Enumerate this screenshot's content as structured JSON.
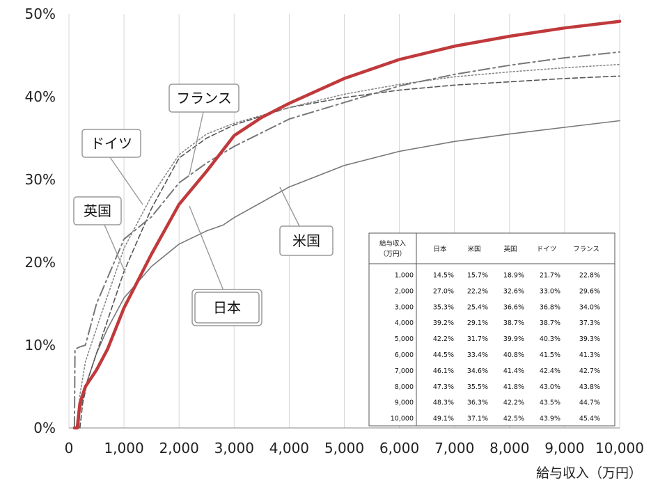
{
  "chart_data": {
    "type": "line",
    "xlabel": "給与収入（万円）",
    "ylabel": "",
    "xlim": [
      0,
      10000
    ],
    "ylim": [
      0,
      50
    ],
    "x_ticks": [
      "0",
      "1,000",
      "2,000",
      "3,000",
      "4,000",
      "5,000",
      "6,000",
      "7,000",
      "8,000",
      "9,000",
      "10,000"
    ],
    "y_ticks": [
      "0%",
      "10%",
      "20%",
      "30%",
      "40%",
      "50%"
    ],
    "grid": "vertical",
    "series": [
      {
        "name": "日本",
        "color": "#c0393b",
        "points": [
          [
            100,
            0
          ],
          [
            150,
            0
          ],
          [
            200,
            3
          ],
          [
            300,
            5
          ],
          [
            500,
            7
          ],
          [
            700,
            9.5
          ],
          [
            1000,
            14.5
          ],
          [
            1500,
            21
          ],
          [
            2000,
            27
          ],
          [
            2500,
            31
          ],
          [
            3000,
            35.3
          ],
          [
            3500,
            37.5
          ],
          [
            4000,
            39.2
          ],
          [
            5000,
            42.2
          ],
          [
            6000,
            44.5
          ],
          [
            7000,
            46.1
          ],
          [
            8000,
            47.3
          ],
          [
            9000,
            48.3
          ],
          [
            10000,
            49.1
          ]
        ]
      },
      {
        "name": "米国",
        "color": "#777777",
        "points": [
          [
            180,
            0
          ],
          [
            200,
            2
          ],
          [
            300,
            5
          ],
          [
            500,
            9
          ],
          [
            700,
            12
          ],
          [
            1000,
            15.7
          ],
          [
            1500,
            19.5
          ],
          [
            2000,
            22.2
          ],
          [
            2500,
            23.8
          ],
          [
            2800,
            24.5
          ],
          [
            3000,
            25.4
          ],
          [
            4000,
            29.1
          ],
          [
            5000,
            31.7
          ],
          [
            6000,
            33.4
          ],
          [
            7000,
            34.6
          ],
          [
            8000,
            35.5
          ],
          [
            9000,
            36.3
          ],
          [
            10000,
            37.1
          ]
        ]
      },
      {
        "name": "英国",
        "color": "#555555",
        "points": [
          [
            200,
            0
          ],
          [
            250,
            3
          ],
          [
            350,
            6
          ],
          [
            600,
            11
          ],
          [
            1000,
            18.9
          ],
          [
            1500,
            26.5
          ],
          [
            2000,
            32.6
          ],
          [
            2500,
            35
          ],
          [
            3000,
            36.6
          ],
          [
            4000,
            38.7
          ],
          [
            5000,
            39.9
          ],
          [
            6000,
            40.8
          ],
          [
            7000,
            41.4
          ],
          [
            8000,
            41.8
          ],
          [
            9000,
            42.2
          ],
          [
            10000,
            42.5
          ]
        ]
      },
      {
        "name": "ドイツ",
        "color": "#888888",
        "points": [
          [
            150,
            0
          ],
          [
            200,
            4
          ],
          [
            300,
            8
          ],
          [
            600,
            14
          ],
          [
            1000,
            21.7
          ],
          [
            1500,
            28
          ],
          [
            2000,
            33
          ],
          [
            2500,
            35.5
          ],
          [
            3000,
            36.8
          ],
          [
            4000,
            38.7
          ],
          [
            5000,
            40.3
          ],
          [
            6000,
            41.5
          ],
          [
            7000,
            42.4
          ],
          [
            8000,
            43
          ],
          [
            9000,
            43.5
          ],
          [
            10000,
            43.9
          ]
        ]
      },
      {
        "name": "フランス",
        "color": "#777777",
        "points": [
          [
            100,
            0
          ],
          [
            110,
            9.5
          ],
          [
            200,
            9.8
          ],
          [
            300,
            10
          ],
          [
            500,
            15
          ],
          [
            1000,
            22.8
          ],
          [
            1500,
            25.5
          ],
          [
            2000,
            29.6
          ],
          [
            2500,
            32
          ],
          [
            3000,
            34
          ],
          [
            4000,
            37.3
          ],
          [
            5000,
            39.3
          ],
          [
            6000,
            41.3
          ],
          [
            7000,
            42.7
          ],
          [
            8000,
            43.8
          ],
          [
            9000,
            44.7
          ],
          [
            10000,
            45.4
          ]
        ]
      }
    ],
    "callouts": [
      "フランス",
      "ドイツ",
      "英国",
      "米国",
      "日本"
    ],
    "table": {
      "header": [
        "給与収入",
        "日本",
        "米国",
        "英国",
        "ドイツ",
        "フランス"
      ],
      "header_sub": "（万円）",
      "rows": [
        [
          "1,000",
          "14.5%",
          "15.7%",
          "18.9%",
          "21.7%",
          "22.8%"
        ],
        [
          "2,000",
          "27.0%",
          "22.2%",
          "32.6%",
          "33.0%",
          "29.6%"
        ],
        [
          "3,000",
          "35.3%",
          "25.4%",
          "36.6%",
          "36.8%",
          "34.0%"
        ],
        [
          "4,000",
          "39.2%",
          "29.1%",
          "38.7%",
          "38.7%",
          "37.3%"
        ],
        [
          "5,000",
          "42.2%",
          "31.7%",
          "39.9%",
          "40.3%",
          "39.3%"
        ],
        [
          "6,000",
          "44.5%",
          "33.4%",
          "40.8%",
          "41.5%",
          "41.3%"
        ],
        [
          "7,000",
          "46.1%",
          "34.6%",
          "41.4%",
          "42.4%",
          "42.7%"
        ],
        [
          "8,000",
          "47.3%",
          "35.5%",
          "41.8%",
          "43.0%",
          "43.8%"
        ],
        [
          "9,000",
          "48.3%",
          "36.3%",
          "42.2%",
          "43.5%",
          "44.7%"
        ],
        [
          "10,000",
          "49.1%",
          "37.1%",
          "42.5%",
          "43.9%",
          "45.4%"
        ]
      ]
    }
  }
}
